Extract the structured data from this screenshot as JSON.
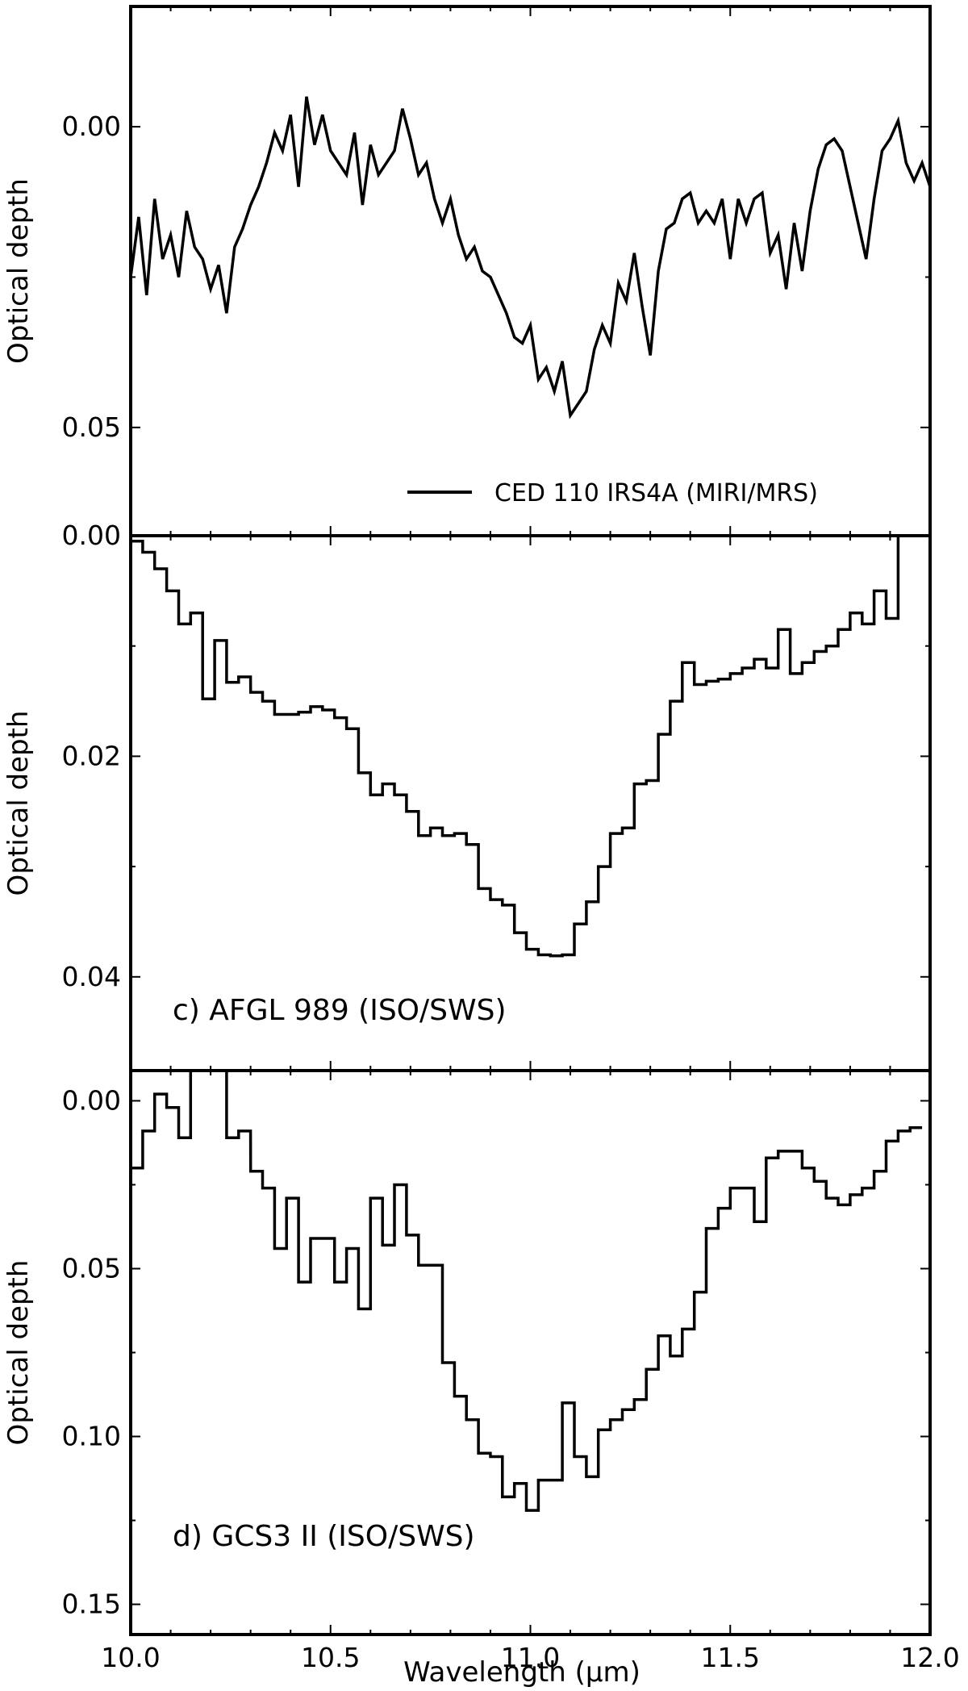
{
  "chart_data": [
    {
      "type": "line",
      "panel": "top",
      "ylabel": "Optical depth",
      "xlim": [
        10.0,
        12.0
      ],
      "ylim": [
        0.068,
        -0.02
      ],
      "y_inverted": true,
      "yticks": [
        0.0,
        0.05
      ],
      "ytick_labels": [
        "0.00",
        "0.05"
      ],
      "legend": {
        "placement": "lower-right",
        "entries": [
          "CED 110 IRS4A (MIRI/MRS)"
        ]
      },
      "series": [
        {
          "name": "CED 110 IRS4A (MIRI/MRS)",
          "x": [
            10.0,
            10.02,
            10.04,
            10.06,
            10.08,
            10.1,
            10.12,
            10.14,
            10.16,
            10.18,
            10.2,
            10.22,
            10.24,
            10.26,
            10.28,
            10.3,
            10.32,
            10.34,
            10.36,
            10.38,
            10.4,
            10.42,
            10.44,
            10.46,
            10.48,
            10.5,
            10.52,
            10.54,
            10.56,
            10.58,
            10.6,
            10.62,
            10.64,
            10.66,
            10.68,
            10.7,
            10.72,
            10.74,
            10.76,
            10.78,
            10.8,
            10.82,
            10.84,
            10.86,
            10.88,
            10.9,
            10.92,
            10.94,
            10.96,
            10.98,
            11.0,
            11.02,
            11.04,
            11.06,
            11.08,
            11.1,
            11.12,
            11.14,
            11.16,
            11.18,
            11.2,
            11.22,
            11.24,
            11.26,
            11.28,
            11.3,
            11.32,
            11.34,
            11.36,
            11.38,
            11.4,
            11.42,
            11.44,
            11.46,
            11.48,
            11.5,
            11.52,
            11.54,
            11.56,
            11.58,
            11.6,
            11.62,
            11.64,
            11.66,
            11.68,
            11.7,
            11.72,
            11.74,
            11.76,
            11.78,
            11.8,
            11.82,
            11.84,
            11.86,
            11.88,
            11.9,
            11.92,
            11.94,
            11.96,
            11.98,
            12.0
          ],
          "y": [
            0.025,
            0.015,
            0.028,
            0.012,
            0.022,
            0.018,
            0.025,
            0.014,
            0.02,
            0.022,
            0.027,
            0.023,
            0.031,
            0.02,
            0.017,
            0.013,
            0.01,
            0.006,
            0.001,
            0.004,
            -0.002,
            0.01,
            -0.005,
            0.003,
            -0.002,
            0.004,
            0.006,
            0.008,
            0.001,
            0.013,
            0.003,
            0.008,
            0.006,
            0.004,
            -0.003,
            0.002,
            0.008,
            0.006,
            0.012,
            0.016,
            0.012,
            0.018,
            0.022,
            0.02,
            0.024,
            0.025,
            0.028,
            0.031,
            0.035,
            0.036,
            0.033,
            0.042,
            0.04,
            0.044,
            0.039,
            0.048,
            0.046,
            0.044,
            0.037,
            0.033,
            0.036,
            0.026,
            0.029,
            0.021,
            0.03,
            0.038,
            0.024,
            0.017,
            0.016,
            0.012,
            0.011,
            0.016,
            0.014,
            0.016,
            0.012,
            0.022,
            0.012,
            0.016,
            0.012,
            0.011,
            0.021,
            0.018,
            0.027,
            0.016,
            0.024,
            0.014,
            0.007,
            0.003,
            0.002,
            0.004,
            0.01,
            0.016,
            0.022,
            0.012,
            0.004,
            0.002,
            -0.001,
            0.006,
            0.009,
            0.006,
            0.01
          ]
        }
      ]
    },
    {
      "type": "line",
      "panel": "middle",
      "ylabel": "Optical depth",
      "xlim": [
        10.0,
        12.0
      ],
      "ylim": [
        0.0485,
        0.0
      ],
      "y_inverted": true,
      "yticks": [
        0.0,
        0.02,
        0.04
      ],
      "ytick_labels": [
        "0.00",
        "0.02",
        "0.04"
      ],
      "annotation": "c) AFGL 989 (ISO/SWS)",
      "series": [
        {
          "name": "c) AFGL 989 (ISO/SWS)",
          "step": true,
          "x": [
            10.0,
            10.03,
            10.06,
            10.09,
            10.12,
            10.15,
            10.18,
            10.21,
            10.24,
            10.27,
            10.3,
            10.33,
            10.36,
            10.39,
            10.42,
            10.45,
            10.48,
            10.51,
            10.54,
            10.57,
            10.6,
            10.63,
            10.66,
            10.69,
            10.72,
            10.75,
            10.78,
            10.81,
            10.84,
            10.87,
            10.9,
            10.93,
            10.96,
            10.99,
            11.02,
            11.05,
            11.08,
            11.11,
            11.14,
            11.17,
            11.2,
            11.23,
            11.26,
            11.29,
            11.32,
            11.35,
            11.38,
            11.41,
            11.44,
            11.47,
            11.5,
            11.53,
            11.56,
            11.59,
            11.62,
            11.65,
            11.68,
            11.71,
            11.74,
            11.77,
            11.8,
            11.83,
            11.86,
            11.89,
            11.92
          ],
          "y": [
            0.0005,
            0.0015,
            0.003,
            0.005,
            0.008,
            0.007,
            0.0148,
            0.0095,
            0.0133,
            0.0128,
            0.0142,
            0.015,
            0.0162,
            0.0162,
            0.016,
            0.0155,
            0.0158,
            0.0165,
            0.0175,
            0.0215,
            0.0235,
            0.0225,
            0.0235,
            0.025,
            0.0272,
            0.0265,
            0.0272,
            0.027,
            0.028,
            0.032,
            0.033,
            0.0335,
            0.036,
            0.0375,
            0.038,
            0.0381,
            0.038,
            0.0352,
            0.0332,
            0.03,
            0.027,
            0.0265,
            0.0225,
            0.0222,
            0.018,
            0.015,
            0.0115,
            0.0135,
            0.0132,
            0.013,
            0.0125,
            0.012,
            0.0112,
            0.012,
            0.0085,
            0.0125,
            0.0115,
            0.0105,
            0.01,
            0.0085,
            0.007,
            0.008,
            0.005,
            0.0075,
            0.0
          ]
        }
      ]
    },
    {
      "type": "line",
      "panel": "bottom",
      "ylabel": "Optical depth",
      "xlabel": "Wavelength (μm)",
      "xlim": [
        10.0,
        12.0
      ],
      "xticks": [
        10.0,
        10.5,
        11.0,
        11.5,
        12.0
      ],
      "xtick_labels": [
        "10.0",
        "10.5",
        "11.0",
        "11.5",
        "12.0"
      ],
      "ylim": [
        0.159,
        -0.009
      ],
      "y_inverted": true,
      "yticks": [
        0.0,
        0.05,
        0.1,
        0.15
      ],
      "ytick_labels": [
        "0.00",
        "0.05",
        "0.10",
        "0.15"
      ],
      "annotation": "d) GCS3 II (ISO/SWS)",
      "series": [
        {
          "name": "d) GCS3 II (ISO/SWS)",
          "step": true,
          "x": [
            10.0,
            10.03,
            10.06,
            10.09,
            10.12,
            10.15,
            10.18,
            10.21,
            10.24,
            10.27,
            10.3,
            10.33,
            10.36,
            10.39,
            10.42,
            10.45,
            10.48,
            10.51,
            10.54,
            10.57,
            10.6,
            10.63,
            10.66,
            10.69,
            10.72,
            10.75,
            10.78,
            10.81,
            10.84,
            10.87,
            10.9,
            10.93,
            10.96,
            10.99,
            11.02,
            11.05,
            11.08,
            11.11,
            11.14,
            11.17,
            11.2,
            11.23,
            11.26,
            11.29,
            11.32,
            11.35,
            11.38,
            11.41,
            11.44,
            11.47,
            11.5,
            11.53,
            11.56,
            11.59,
            11.62,
            11.65,
            11.68,
            11.71,
            11.74,
            11.77,
            11.8,
            11.83,
            11.86,
            11.89,
            11.92,
            11.95
          ],
          "y": [
            0.02,
            0.009,
            -0.002,
            0.002,
            0.011,
            -0.009,
            -0.009,
            -0.009,
            0.011,
            0.009,
            0.021,
            0.026,
            0.044,
            0.029,
            0.054,
            0.041,
            0.041,
            0.054,
            0.044,
            0.062,
            0.029,
            0.043,
            0.025,
            0.04,
            0.049,
            0.049,
            0.078,
            0.088,
            0.095,
            0.105,
            0.106,
            0.118,
            0.114,
            0.122,
            0.113,
            0.113,
            0.09,
            0.106,
            0.112,
            0.098,
            0.095,
            0.092,
            0.089,
            0.08,
            0.07,
            0.076,
            0.068,
            0.057,
            0.038,
            0.032,
            0.026,
            0.026,
            0.036,
            0.017,
            0.015,
            0.015,
            0.02,
            0.024,
            0.029,
            0.031,
            0.028,
            0.026,
            0.021,
            0.012,
            0.009,
            0.008
          ]
        }
      ]
    }
  ]
}
